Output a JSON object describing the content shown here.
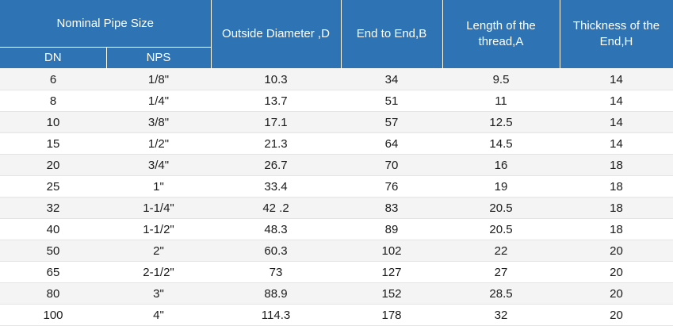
{
  "table": {
    "headers": {
      "nominal": "Nominal Pipe Size",
      "dn": "DN",
      "nps": "NPS",
      "outside_diameter": "Outside Diameter ,D",
      "end_to_end": "End to End,B",
      "thread_length": "Length of the thread,A",
      "thickness": "Thickness of the End,H"
    },
    "rows": [
      [
        "6",
        "1/8\"",
        "10.3",
        "34",
        "9.5",
        "14"
      ],
      [
        "8",
        "1/4\"",
        "13.7",
        "51",
        "11",
        "14"
      ],
      [
        "10",
        "3/8\"",
        "17.1",
        "57",
        "12.5",
        "14"
      ],
      [
        "15",
        "1/2\"",
        "21.3",
        "64",
        "14.5",
        "14"
      ],
      [
        "20",
        "3/4\"",
        "26.7",
        "70",
        "16",
        "18"
      ],
      [
        "25",
        "1\"",
        "33.4",
        "76",
        "19",
        "18"
      ],
      [
        "32",
        "1-1/4\"",
        "42 .2",
        "83",
        "20.5",
        "18"
      ],
      [
        "40",
        "1-1/2\"",
        "48.3",
        "89",
        "20.5",
        "18"
      ],
      [
        "50",
        "2\"",
        "60.3",
        "102",
        "22",
        "20"
      ],
      [
        "65",
        "2-1/2\"",
        "73",
        "127",
        "27",
        "20"
      ],
      [
        "80",
        "3\"",
        "88.9",
        "152",
        "28.5",
        "20"
      ],
      [
        "100",
        "4\"",
        "114.3",
        "178",
        "32",
        "20"
      ]
    ]
  },
  "colors": {
    "header_bg": "#2e74b5",
    "header_text": "#ffffff",
    "row_alt_bg": "#f4f4f4"
  }
}
